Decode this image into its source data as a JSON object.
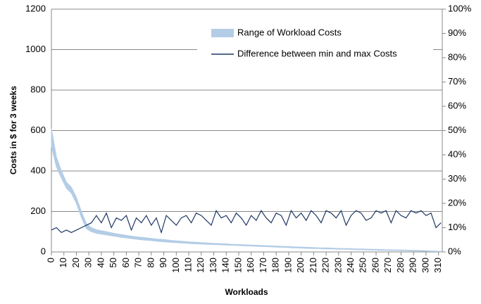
{
  "chart_data": {
    "type": "range-line",
    "xlabel": "Workloads",
    "ylabel": "Costs in $ for 3 weeks",
    "x": [
      0,
      4,
      8,
      12,
      16,
      20,
      24,
      28,
      32,
      36,
      40,
      44,
      48,
      52,
      56,
      60,
      64,
      68,
      72,
      76,
      80,
      84,
      88,
      92,
      96,
      100,
      104,
      108,
      112,
      116,
      120,
      124,
      128,
      132,
      136,
      140,
      144,
      148,
      152,
      156,
      160,
      164,
      168,
      172,
      176,
      180,
      184,
      188,
      192,
      196,
      200,
      204,
      208,
      212,
      216,
      220,
      224,
      228,
      232,
      236,
      240,
      244,
      248,
      252,
      256,
      260,
      264,
      268,
      272,
      276,
      280,
      284,
      288,
      292,
      296,
      300,
      304,
      308,
      312
    ],
    "series": [
      {
        "name": "Range of Workload Costs",
        "color": "#b4cde6",
        "values": [
          610,
          470,
          400,
          345,
          320,
          270,
          200,
          140,
          120,
          110,
          105,
          100,
          95,
          90,
          86,
          82,
          78,
          75,
          72,
          70,
          67,
          64,
          62,
          60,
          57,
          55,
          53,
          51,
          49,
          48,
          46,
          45,
          43,
          42,
          41,
          40,
          38,
          37,
          36,
          35,
          34,
          33,
          32,
          31,
          30,
          29,
          28,
          27,
          26,
          25,
          24,
          23,
          22,
          21,
          20,
          20,
          19,
          18,
          17,
          17,
          16,
          15,
          15,
          14,
          13,
          13,
          12,
          11,
          11,
          10,
          10,
          9,
          8,
          8,
          7,
          6,
          5,
          4,
          3
        ],
        "low": [
          520,
          420,
          365,
          315,
          290,
          240,
          170,
          115,
          100,
          92,
          88,
          84,
          80,
          76,
          72,
          69,
          66,
          63,
          60,
          58,
          56,
          53,
          51,
          49,
          47,
          46,
          44,
          43,
          41,
          40,
          39,
          38,
          37,
          36,
          35,
          34,
          33,
          32,
          31,
          30,
          29,
          28,
          27,
          26,
          25,
          24,
          23,
          22,
          21,
          20,
          19,
          18,
          17,
          17,
          16,
          15,
          15,
          14,
          13,
          13,
          12,
          11,
          11,
          10,
          9,
          9,
          8,
          8,
          7,
          7,
          6,
          6,
          5,
          5,
          4,
          3,
          2,
          2,
          1
        ]
      },
      {
        "name": "Difference between min and max Costs",
        "color": "#1f3864",
        "axis": "y2",
        "values": [
          9,
          10,
          8,
          9,
          8,
          9,
          10,
          11,
          12,
          15,
          12,
          16,
          10,
          14,
          13,
          15,
          9,
          14,
          12,
          15,
          11,
          14,
          8,
          15,
          13,
          11,
          14,
          15,
          12,
          16,
          15,
          13,
          11,
          17,
          14,
          15,
          12,
          16,
          14,
          11,
          15,
          13,
          17,
          14,
          12,
          16,
          15,
          11,
          17,
          14,
          16,
          13,
          17,
          15,
          12,
          17,
          16,
          14,
          17,
          11,
          15,
          17,
          16,
          13,
          14,
          17,
          16,
          17,
          12,
          17,
          15,
          14,
          17,
          16,
          17,
          15,
          16,
          10,
          12
        ]
      }
    ],
    "xlim": [
      0,
      313
    ],
    "xticks": [
      0,
      10,
      20,
      30,
      40,
      50,
      60,
      70,
      80,
      90,
      100,
      110,
      120,
      130,
      140,
      150,
      160,
      170,
      180,
      190,
      200,
      210,
      220,
      230,
      240,
      250,
      260,
      270,
      280,
      290,
      300,
      310
    ],
    "ylim": [
      0,
      1200
    ],
    "yticks": [
      0,
      200,
      400,
      600,
      800,
      1000,
      1200
    ],
    "y2lim": [
      0,
      100
    ],
    "y2ticks": [
      {
        "value": 0,
        "label": "0%"
      },
      {
        "value": 10,
        "label": "10%"
      },
      {
        "value": 20,
        "label": "20%"
      },
      {
        "value": 30,
        "label": "30%"
      },
      {
        "value": 40,
        "label": "40%"
      },
      {
        "value": 50,
        "label": "50%"
      },
      {
        "value": 60,
        "label": "60%"
      },
      {
        "value": 70,
        "label": "70%"
      },
      {
        "value": 80,
        "label": "80%"
      },
      {
        "value": 90,
        "label": "90%"
      },
      {
        "value": 100,
        "label": "100%"
      }
    ],
    "grid": true,
    "legend": "top-center"
  }
}
